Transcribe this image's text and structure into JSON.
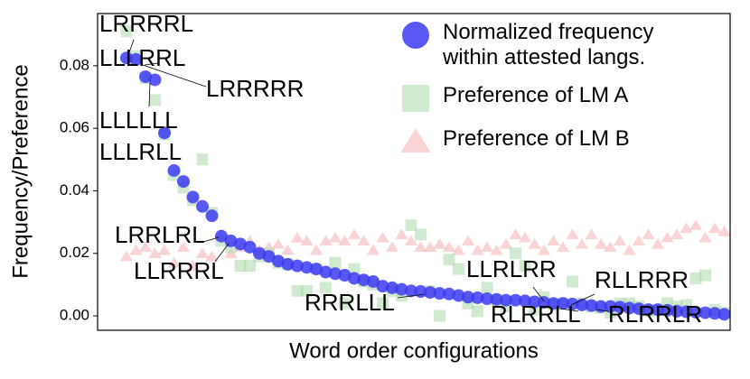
{
  "chart_data": {
    "type": "scatter",
    "xlabel": "Word order configurations",
    "ylabel": "Frequency/Preference",
    "ylim": [
      -0.0046,
      0.0967
    ],
    "yticks": [
      {
        "value": 0,
        "label": "0.00"
      },
      {
        "value": 0.02,
        "label": "0.02"
      },
      {
        "value": 0.04,
        "label": "0.04"
      },
      {
        "value": 0.06,
        "label": "0.06"
      },
      {
        "value": 0.08,
        "label": "0.08"
      }
    ],
    "categories": [
      null,
      null,
      null,
      null,
      null,
      null,
      null,
      null,
      null,
      null,
      null,
      null,
      null,
      null,
      null,
      null,
      null,
      null,
      null,
      null,
      null,
      null,
      null,
      null,
      null,
      null,
      null,
      null,
      null,
      null,
      null,
      null,
      null,
      null,
      null,
      null,
      null,
      null,
      null,
      null,
      null,
      null,
      null,
      null,
      null,
      null,
      null,
      null,
      null,
      null,
      null,
      null,
      null,
      null,
      null,
      null,
      null,
      null,
      null,
      null,
      null,
      null,
      null,
      null
    ],
    "legend": "upper right",
    "series": [
      {
        "name": "Normalized frequency within attested langs.",
        "color": "#3b3bf2",
        "marker": "circle",
        "values": [
          0.0825,
          0.082,
          0.0765,
          0.0755,
          0.0585,
          0.0465,
          0.043,
          0.038,
          0.035,
          0.032,
          0.0255,
          0.024,
          0.023,
          0.022,
          0.02,
          0.019,
          0.0175,
          0.0165,
          0.016,
          0.0155,
          0.015,
          0.014,
          0.0135,
          0.013,
          0.012,
          0.0115,
          0.011,
          0.0095,
          0.009,
          0.0085,
          0.008,
          0.0078,
          0.0075,
          0.0072,
          0.007,
          0.0065,
          0.006,
          0.0058,
          0.0055,
          0.0053,
          0.005,
          0.005,
          0.0048,
          0.0045,
          0.0043,
          0.004,
          0.004,
          0.0038,
          0.0035,
          0.0033,
          0.003,
          0.003,
          0.0028,
          0.0025,
          0.0023,
          0.002,
          0.002,
          0.0018,
          0.0015,
          0.0013,
          0.0012,
          0.001,
          0.0008,
          0.0005
        ]
      },
      {
        "name": "Preference of LM A",
        "color": "#a9d8a9",
        "marker": "square",
        "values": [
          0.091,
          0.083,
          0.076,
          0.069,
          0.058,
          0.045,
          0.041,
          0.037,
          0.05,
          0.033,
          0.024,
          0.022,
          0.016,
          0.016,
          0.019,
          0.02,
          0.017,
          0.0165,
          0.008,
          0.008,
          0.015,
          0.009,
          0.017,
          0.004,
          0.015,
          0.011,
          0.01,
          0.004,
          0.008,
          0.0065,
          0.029,
          0.026,
          0.008,
          0,
          0.018,
          0.015,
          0.004,
          0.0015,
          0.009,
          0.005,
          0.003,
          0.02,
          0.016,
          0.002,
          0.006,
          0.0035,
          0.004,
          0.011,
          0.004,
          0.003,
          0.0025,
          0.001,
          0.004,
          0.004,
          0.003,
          0.0015,
          0.002,
          0.004,
          0.003,
          0.0035,
          0.012,
          0.013,
          0.002,
          0.001
        ]
      },
      {
        "name": "Preference of LM B",
        "color": "#f6aaaa",
        "marker": "triangle",
        "values": [
          0.019,
          0.021,
          0.022,
          0.02,
          0.021,
          0.017,
          0.022,
          0.016,
          0.02,
          0.019,
          0.026,
          0.02,
          0.022,
          0.024,
          0.021,
          0.022,
          0.023,
          0.021,
          0.025,
          0.024,
          0.021,
          0.024,
          0.025,
          0.024,
          0.026,
          0.024,
          0.021,
          0.025,
          0.022,
          0.026,
          0.024,
          0.022,
          0.022,
          0.023,
          0.022,
          0.021,
          0.024,
          0.021,
          0.022,
          0.021,
          0.023,
          0.026,
          0.025,
          0.023,
          0.021,
          0.024,
          0.022,
          0.026,
          0.023,
          0.026,
          0.023,
          0.022,
          0.024,
          0.021,
          0.024,
          0.026,
          0.023,
          0.025,
          0.026,
          0.028,
          0.029,
          0.025,
          0.028,
          0.027
        ]
      }
    ],
    "annotations": [
      "LRRRRL",
      "LLLRRL",
      "LRRRRR",
      "LLLLLL",
      "LLLRLL",
      "LRRLRL",
      "LLRRRL",
      "RRRLLL",
      "LLRLRR",
      "RLLRRR",
      "RLRRLL",
      "RLRRLR"
    ]
  }
}
